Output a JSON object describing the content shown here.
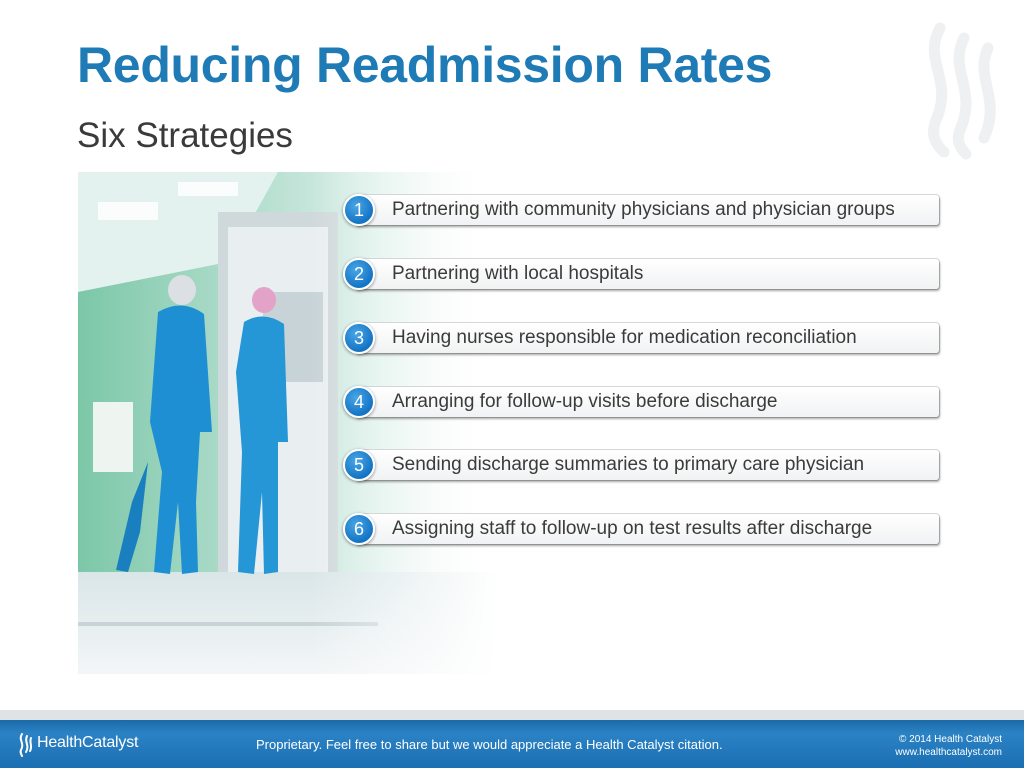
{
  "slide": {
    "title": "Reducing Readmission Rates",
    "subtitle": "Six Strategies"
  },
  "strategies": [
    {
      "number": "1",
      "text": "Partnering with community physicians and physician groups"
    },
    {
      "number": "2",
      "text": "Partnering with local hospitals"
    },
    {
      "number": "3",
      "text": "Having nurses responsible for medication reconciliation"
    },
    {
      "number": "4",
      "text": "Arranging for follow-up visits before discharge"
    },
    {
      "number": "5",
      "text": "Sending discharge summaries to primary care physician"
    },
    {
      "number": "6",
      "text": "Assigning staff to follow-up on test results after discharge"
    }
  ],
  "footer": {
    "brand": "HealthCatalyst",
    "note": "Proprietary. Feel free to share but we would appreciate a Health Catalyst citation.",
    "copyright": "© 2014 Health Catalyst",
    "website": "www.healthcatalyst.com"
  },
  "colors": {
    "title": "#1f7bb6",
    "number_badge": "#1474c4",
    "footer": "#1b6aa8"
  },
  "icons": {
    "watermark": "flame-logo-icon",
    "footer_logo": "flame-logo-icon"
  }
}
